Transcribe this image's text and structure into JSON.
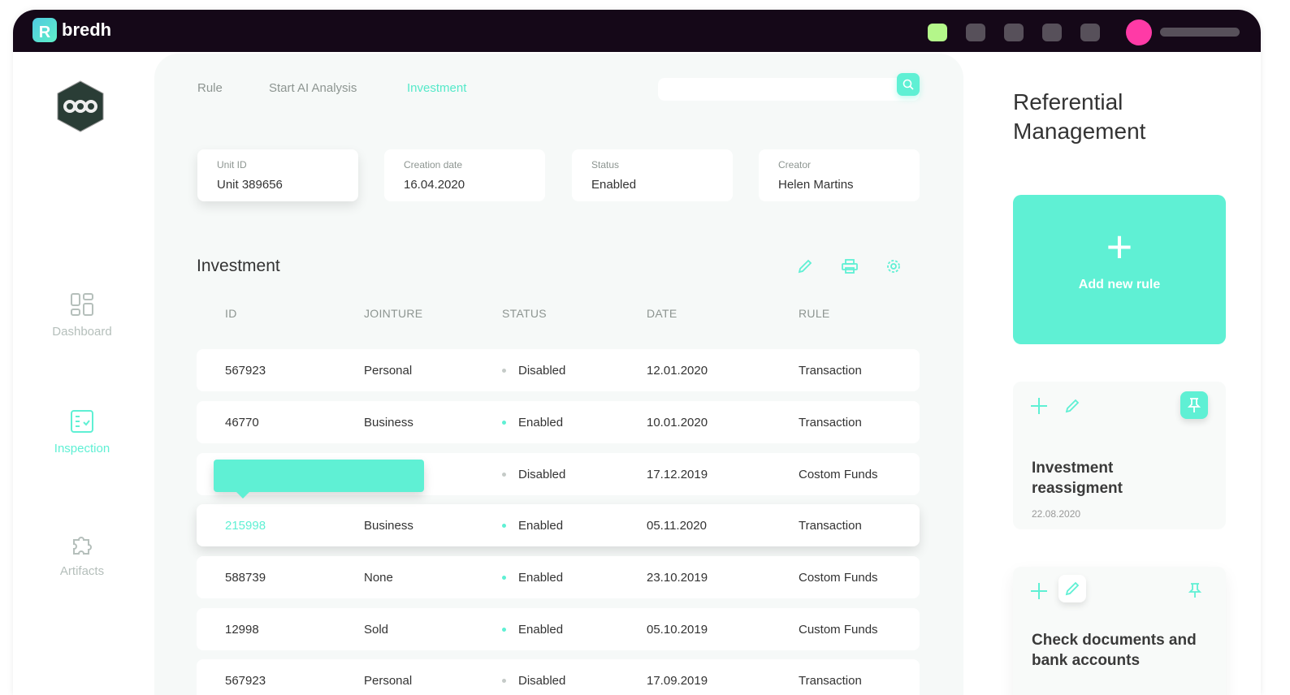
{
  "app": {
    "brand": "bredh",
    "logo_letter": "R"
  },
  "colors": {
    "accent": "#5ff0d4",
    "topbar": "#150818",
    "avatar": "#ff3aa6",
    "status_green": "#b4f78a"
  },
  "sidebar": {
    "items": [
      {
        "label": "Dashboard",
        "icon": "dashboard-icon"
      },
      {
        "label": "Inspection",
        "icon": "checklist-icon",
        "active": true
      },
      {
        "label": "Artifacts",
        "icon": "puzzle-icon"
      }
    ]
  },
  "tabs": [
    {
      "label": "Rule"
    },
    {
      "label": "Start AI Analysis"
    },
    {
      "label": "Investment",
      "active": true
    }
  ],
  "search": {
    "placeholder": ""
  },
  "info_cards": [
    {
      "label": "Unit ID",
      "value": "Unit 389656"
    },
    {
      "label": "Creation date",
      "value": "16.04.2020"
    },
    {
      "label": "Status",
      "value": "Enabled"
    },
    {
      "label": "Creator",
      "value": "Helen Martins"
    }
  ],
  "table": {
    "title": "Investment",
    "columns": [
      "ID",
      "JOINTURE",
      "STATUS",
      "DATE",
      "RULE"
    ],
    "rows": [
      {
        "id": "567923",
        "jointure": "Personal",
        "status": "Disabled",
        "date": "12.01.2020",
        "rule": "Transaction"
      },
      {
        "id": "46770",
        "jointure": "Business",
        "status": "Enabled",
        "date": "10.01.2020",
        "rule": "Transaction"
      },
      {
        "id": "",
        "jointure": "",
        "status": "Disabled",
        "date": "17.12.2019",
        "rule": "Costom Funds"
      },
      {
        "id": "215998",
        "jointure": "Business",
        "status": "Enabled",
        "date": "05.11.2020",
        "rule": "Transaction"
      },
      {
        "id": "588739",
        "jointure": "None",
        "status": "Enabled",
        "date": "23.10.2019",
        "rule": "Costom Funds"
      },
      {
        "id": "12998",
        "jointure": "Sold",
        "status": "Enabled",
        "date": "05.10.2019",
        "rule": "Custom Funds"
      },
      {
        "id": "567923",
        "jointure": "Personal",
        "status": "Disabled",
        "date": "17.09.2019",
        "rule": "Transaction"
      }
    ]
  },
  "right": {
    "title": "Referential Management",
    "add_rule": "Add new rule",
    "cards": [
      {
        "title": "Investment reassigment",
        "date": "22.08.2020",
        "pinned": true
      },
      {
        "title": "Check documents and bank accounts"
      }
    ]
  }
}
